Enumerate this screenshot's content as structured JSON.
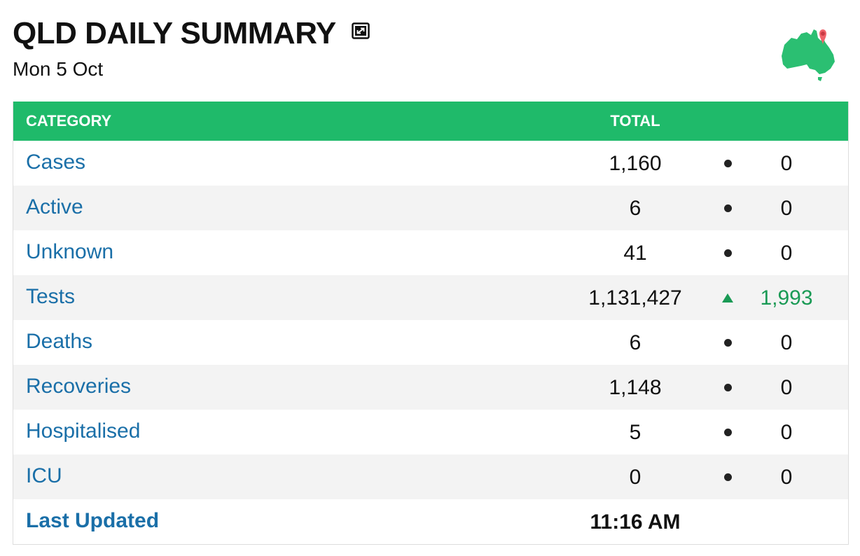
{
  "header": {
    "title": "QLD DAILY SUMMARY",
    "subtitle": "Mon 5 Oct",
    "expand_icon": "expand-icon",
    "logo_icon": "australia-map-pin-icon"
  },
  "colors": {
    "header_bg": "#1fba6a",
    "category_text": "#1a6fa8",
    "increase": "#1a9a55",
    "row_alt": "#f3f3f3"
  },
  "table": {
    "columns": {
      "category": "CATEGORY",
      "total": "TOTAL"
    },
    "rows": [
      {
        "category": "Cases",
        "total": "1,160",
        "trend": "none",
        "change": "0"
      },
      {
        "category": "Active",
        "total": "6",
        "trend": "none",
        "change": "0"
      },
      {
        "category": "Unknown",
        "total": "41",
        "trend": "none",
        "change": "0"
      },
      {
        "category": "Tests",
        "total": "1,131,427",
        "trend": "up",
        "change": "1,993"
      },
      {
        "category": "Deaths",
        "total": "6",
        "trend": "none",
        "change": "0"
      },
      {
        "category": "Recoveries",
        "total": "1,148",
        "trend": "none",
        "change": "0"
      },
      {
        "category": "Hospitalised",
        "total": "5",
        "trend": "none",
        "change": "0"
      },
      {
        "category": "ICU",
        "total": "0",
        "trend": "none",
        "change": "0"
      }
    ],
    "footer": {
      "label": "Last Updated",
      "value": "11:16 AM"
    }
  }
}
